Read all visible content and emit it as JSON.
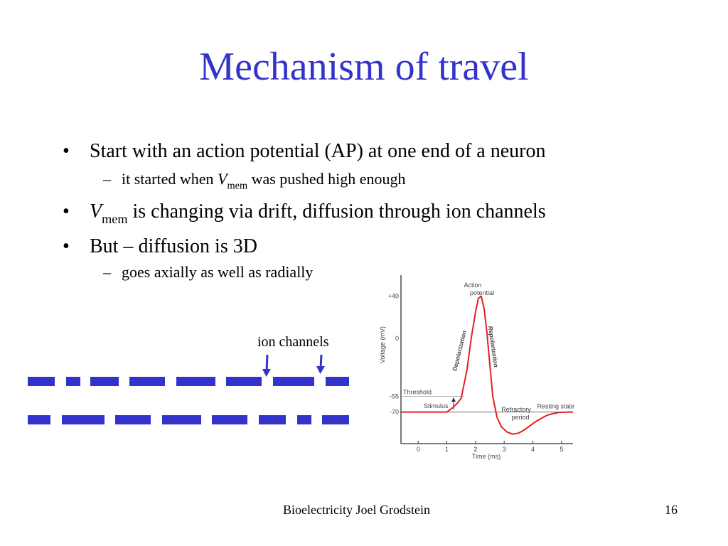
{
  "slide": {
    "title": "Mechanism of travel",
    "footer": "Bioelectricity Joel Grodstein",
    "page_number": "16",
    "title_color": "#3333cc",
    "accent_color": "#3333cc"
  },
  "bullets": [
    {
      "marker": "•",
      "text": "Start with an action potential (AP) at one end of a neuron"
    },
    {
      "marker": "–",
      "pre": "it started when ",
      "var": "V",
      "sub": "mem",
      "post": " was pushed high enough"
    },
    {
      "marker": "•",
      "var": "V",
      "sub": "mem",
      "post": " is changing via drift, diffusion through ion channels"
    },
    {
      "marker": "•",
      "text": "But – diffusion is 3D"
    },
    {
      "marker": "–",
      "text": "goes axially as well as radially"
    }
  ],
  "diagram": {
    "label": "ion channels",
    "arrow_icon": "arrow-down-icon",
    "membrane_color": "#3333cc"
  },
  "chart_data": {
    "type": "line",
    "title": "",
    "xlabel": "Time (ms)",
    "ylabel": "Voltage (mV)",
    "x_ticks": [
      "0",
      "1",
      "2",
      "3",
      "4",
      "5"
    ],
    "y_ticks": [
      "+40",
      "0",
      "-55",
      "-70"
    ],
    "xlim": [
      -0.6,
      5.4
    ],
    "ylim": [
      -100,
      60
    ],
    "grid": false,
    "line_color": "#e02020",
    "series": [
      {
        "x": [
          -0.6,
          1.0,
          1.1,
          1.2,
          1.35,
          1.5,
          1.7,
          1.85,
          2.0,
          2.1,
          2.2,
          2.3,
          2.4,
          2.5,
          2.6,
          2.75,
          2.9,
          3.1,
          3.3,
          3.5,
          3.7,
          3.9,
          4.1,
          4.3,
          4.5,
          4.7,
          4.9,
          5.2,
          5.4
        ],
        "y": [
          -70,
          -70,
          -68,
          -66,
          -62,
          -57,
          -30,
          0,
          25,
          38,
          40,
          28,
          5,
          -25,
          -55,
          -75,
          -84,
          -89,
          -91,
          -90,
          -87,
          -83,
          -79,
          -76,
          -73,
          -71.5,
          -70.5,
          -70,
          -70
        ]
      }
    ],
    "reference_lines": [
      {
        "label": "Threshold",
        "y": -55
      },
      {
        "label": "Resting state",
        "y": -70
      }
    ],
    "annotations": [
      {
        "text": "Action potential",
        "lines": [
          "Action",
          "potential"
        ]
      },
      {
        "text": "Depolarization"
      },
      {
        "text": "Repolarization"
      },
      {
        "text": "Refractory period",
        "lines": [
          "Refractory",
          "period"
        ]
      },
      {
        "text": "Stimulus"
      }
    ]
  }
}
